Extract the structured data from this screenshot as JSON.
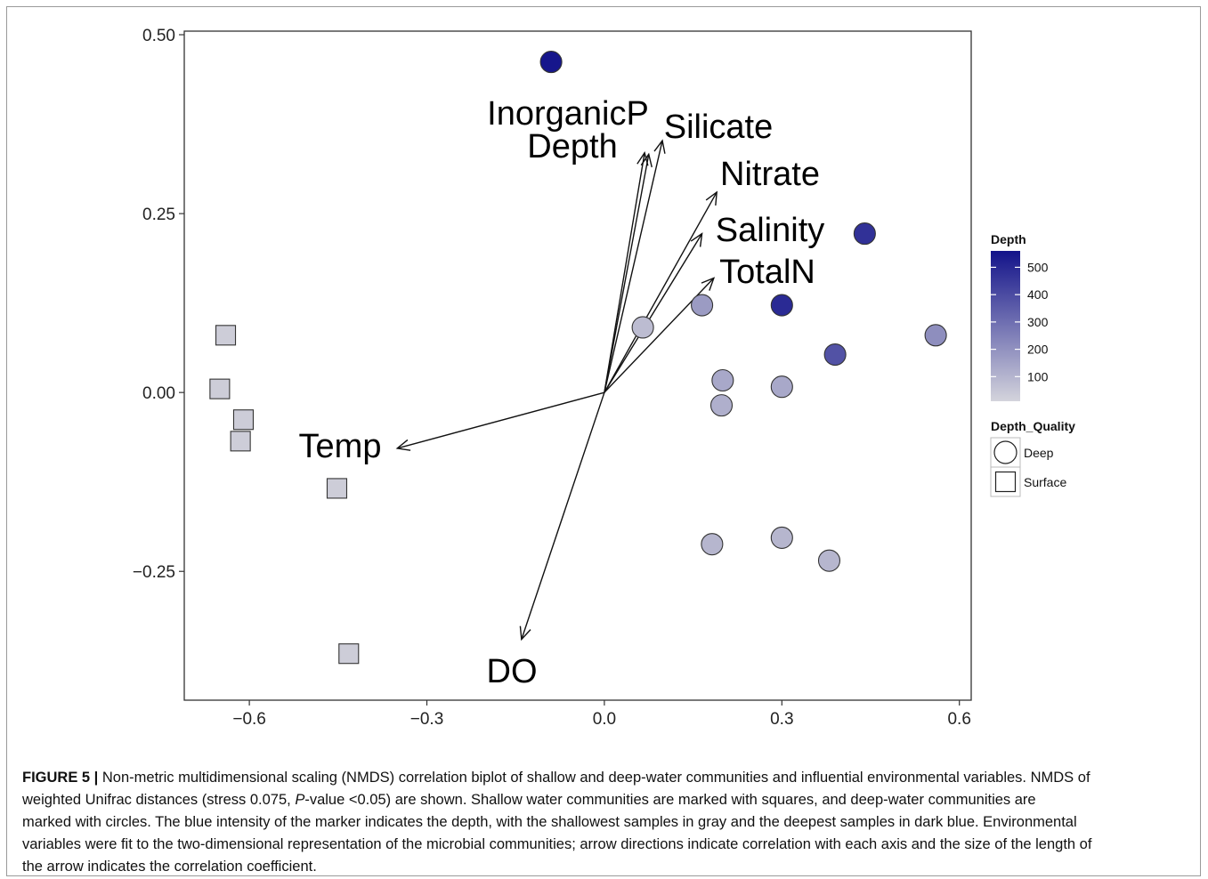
{
  "chart_data": {
    "type": "scatter",
    "xlabel": "",
    "ylabel": "",
    "xlim": [
      -0.71,
      0.62
    ],
    "ylim": [
      -0.43,
      0.505
    ],
    "x_ticks": [
      -0.6,
      -0.3,
      0.0,
      0.3,
      0.6
    ],
    "x_tick_labels": [
      "−0.6",
      "−0.3",
      "0.0",
      "0.3",
      "0.6"
    ],
    "y_ticks": [
      0.5,
      0.25,
      0.0,
      -0.25
    ],
    "y_tick_labels": [
      "0.50",
      "0.25",
      "0.00",
      "−0.25"
    ],
    "grid": false,
    "points": [
      {
        "x": -0.09,
        "y": 0.462,
        "shape": "Deep",
        "depth": 560
      },
      {
        "x": 0.44,
        "y": 0.222,
        "shape": "Deep",
        "depth": 480
      },
      {
        "x": 0.3,
        "y": 0.122,
        "shape": "Deep",
        "depth": 500
      },
      {
        "x": 0.165,
        "y": 0.122,
        "shape": "Deep",
        "depth": 160
      },
      {
        "x": 0.065,
        "y": 0.091,
        "shape": "Deep",
        "depth": 60
      },
      {
        "x": 0.56,
        "y": 0.08,
        "shape": "Deep",
        "depth": 200
      },
      {
        "x": 0.39,
        "y": 0.053,
        "shape": "Deep",
        "depth": 380
      },
      {
        "x": 0.2,
        "y": 0.017,
        "shape": "Deep",
        "depth": 120
      },
      {
        "x": 0.3,
        "y": 0.008,
        "shape": "Deep",
        "depth": 120
      },
      {
        "x": 0.198,
        "y": -0.018,
        "shape": "Deep",
        "depth": 100
      },
      {
        "x": 0.3,
        "y": -0.203,
        "shape": "Deep",
        "depth": 80
      },
      {
        "x": 0.182,
        "y": -0.212,
        "shape": "Deep",
        "depth": 80
      },
      {
        "x": 0.38,
        "y": -0.235,
        "shape": "Deep",
        "depth": 80
      },
      {
        "x": -0.64,
        "y": 0.08,
        "shape": "Surface",
        "depth": 10
      },
      {
        "x": -0.65,
        "y": 0.005,
        "shape": "Surface",
        "depth": 10
      },
      {
        "x": -0.61,
        "y": -0.038,
        "shape": "Surface",
        "depth": 10
      },
      {
        "x": -0.615,
        "y": -0.068,
        "shape": "Surface",
        "depth": 10
      },
      {
        "x": -0.452,
        "y": -0.134,
        "shape": "Surface",
        "depth": 10
      },
      {
        "x": -0.432,
        "y": -0.365,
        "shape": "Surface",
        "depth": 10
      }
    ],
    "vectors": [
      {
        "name": "InorganicP",
        "x": 0.068,
        "y": 0.335
      },
      {
        "name": "Depth",
        "x": 0.075,
        "y": 0.333
      },
      {
        "name": "Silicate",
        "x": 0.098,
        "y": 0.352
      },
      {
        "name": "Nitrate",
        "x": 0.19,
        "y": 0.28
      },
      {
        "name": "Salinity",
        "x": 0.165,
        "y": 0.222
      },
      {
        "name": "TotalN",
        "x": 0.185,
        "y": 0.16
      },
      {
        "name": "Temp",
        "x": -0.35,
        "y": -0.078
      },
      {
        "name": "DO",
        "x": -0.14,
        "y": -0.345
      }
    ],
    "legend_position": "right",
    "legend": {
      "color_title": "Depth",
      "color_ticks": [
        "500",
        "400",
        "300",
        "200",
        "100"
      ],
      "color_low": "#cdcdd8",
      "color_high": "#1a1a8e",
      "shape_title": "Depth_Quality",
      "shape_entries": [
        "Deep",
        "Surface"
      ]
    }
  },
  "caption": {
    "label": "FIGURE 5 |",
    "lines": [
      " Non-metric multidimensional scaling (NMDS) correlation biplot of shallow and deep-water communities and influential environmental variables. NMDS of",
      "weighted Unifrac distances (stress 0.075, ",
      "P",
      "-value <0.05) are shown. Shallow water communities are marked with squares, and deep-water communities are",
      "marked with circles. The blue intensity of the marker indicates the depth, with the shallowest samples in gray and the deepest samples in dark blue. Environmental",
      "variables were fit to the two-dimensional representation of the microbial communities; arrow directions indicate correlation with each axis and the size of the length of",
      "the arrow indicates the correlation coefficient."
    ]
  }
}
